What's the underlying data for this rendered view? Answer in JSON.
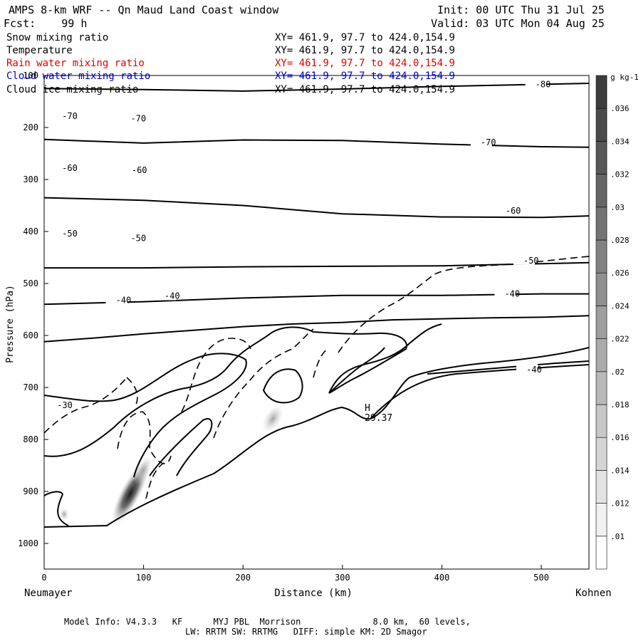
{
  "header": {
    "title": "AMPS 8-km WRF -- Qn Maud Land Coast window",
    "init": "Init: 00 UTC Thu 31 Jul 25",
    "fcst": "Fcst:    99 h",
    "valid": "Valid: 03 UTC Mon 04 Aug 25"
  },
  "fields": [
    {
      "name": "Snow mixing ratio",
      "xy": "XY= 461.9, 97.7 to 424.0,154.9",
      "color": "#000000"
    },
    {
      "name": "Temperature",
      "xy": "XY= 461.9, 97.7 to 424.0,154.9",
      "color": "#000000"
    },
    {
      "name": "Rain water mixing ratio",
      "xy": "XY= 461.9, 97.7 to 424.0,154.9",
      "color": "#e00000"
    },
    {
      "name": "Cloud water mixing ratio",
      "xy": "XY= 461.9, 97.7 to 424.0,154.9",
      "color": "#0000cc"
    },
    {
      "name": "Cloud ice mixing ratio",
      "xy": "XY= 461.9, 97.7 to 424.0,154.9",
      "color": "#000000"
    }
  ],
  "footer": {
    "line1": "Model Info: V4.3.3   KF      MYJ PBL  Morrison              8.0 km,  60 levels,",
    "line2": "LW: RRTM SW: RRTMG   DIFF: simple KM: 2D Smagor"
  },
  "chart_data": {
    "type": "line",
    "title": "AMPS 8-km WRF -- Qn Maud Land Coast window",
    "xlabel": "Distance (km)",
    "ylabel": "Pressure (hPa)",
    "xlim": [
      0,
      548
    ],
    "ylim": [
      1050,
      100
    ],
    "x_ticks": [
      0,
      100,
      200,
      300,
      400,
      500
    ],
    "y_ticks": [
      100,
      200,
      300,
      400,
      500,
      600,
      700,
      800,
      900,
      1000
    ],
    "x_end_labels": {
      "left": "Neumayer",
      "right": "Kohnen"
    },
    "grid": false,
    "isotherms": [
      {
        "label": "-80",
        "x": [
          0,
          100,
          200,
          300,
          400,
          500,
          548
        ],
        "p": [
          125,
          127,
          130,
          126,
          121,
          117,
          115
        ]
      },
      {
        "label": "-70",
        "x": [
          0,
          100,
          200,
          300,
          400,
          500,
          548
        ],
        "p": [
          223,
          230,
          224,
          225,
          232,
          237,
          238
        ]
      },
      {
        "label": "-60",
        "x": [
          0,
          100,
          200,
          300,
          400,
          500,
          548
        ],
        "p": [
          335,
          340,
          350,
          366,
          372,
          373,
          370
        ]
      },
      {
        "label": "-50",
        "x": [
          0,
          100,
          200,
          300,
          400,
          500,
          548
        ],
        "p": [
          470,
          470,
          468,
          467,
          466,
          462,
          460
        ]
      },
      {
        "label": "-40",
        "x": [
          0,
          100,
          200,
          300,
          400,
          500,
          548
        ],
        "p": [
          540,
          535,
          528,
          523,
          523,
          520,
          520
        ]
      },
      {
        "label": "-30",
        "x": [
          0,
          50,
          100,
          150,
          200,
          250,
          300,
          350,
          400,
          450,
          500,
          548
        ],
        "p": [
          612,
          605,
          597,
          590,
          583,
          578,
          575,
          570,
          568,
          566,
          565,
          562
        ]
      }
    ],
    "isotherm_labels": [
      {
        "text": "-80",
        "x": 494,
        "p": 117
      },
      {
        "text": "-70",
        "x": 18,
        "p": 178
      },
      {
        "text": "-70",
        "x": 87,
        "p": 183
      },
      {
        "text": "-70",
        "x": 439,
        "p": 229
      },
      {
        "text": "-60",
        "x": 18,
        "p": 278
      },
      {
        "text": "-60",
        "x": 88,
        "p": 282
      },
      {
        "text": "-60",
        "x": 464,
        "p": 360
      },
      {
        "text": "-50",
        "x": 18,
        "p": 404
      },
      {
        "text": "-50",
        "x": 87,
        "p": 413
      },
      {
        "text": "-50",
        "x": 482,
        "p": 456
      },
      {
        "text": "-40",
        "x": 72,
        "p": 532
      },
      {
        "text": "-40",
        "x": 121,
        "p": 524
      },
      {
        "text": "-40",
        "x": 463,
        "p": 520
      },
      {
        "text": "-30",
        "x": 13,
        "p": 734
      },
      {
        "text": "-40",
        "x": 485,
        "p": 666
      }
    ],
    "high_marker": {
      "label": "H",
      "value": "29.37",
      "x": 325,
      "p": 748
    },
    "colorbar": {
      "units": "g kg-1",
      "levels": [
        ".01",
        ".012",
        ".014",
        ".016",
        ".018",
        ".02",
        ".022",
        ".024",
        ".026",
        ".028",
        ".03",
        ".032",
        ".034",
        ".036"
      ]
    }
  }
}
